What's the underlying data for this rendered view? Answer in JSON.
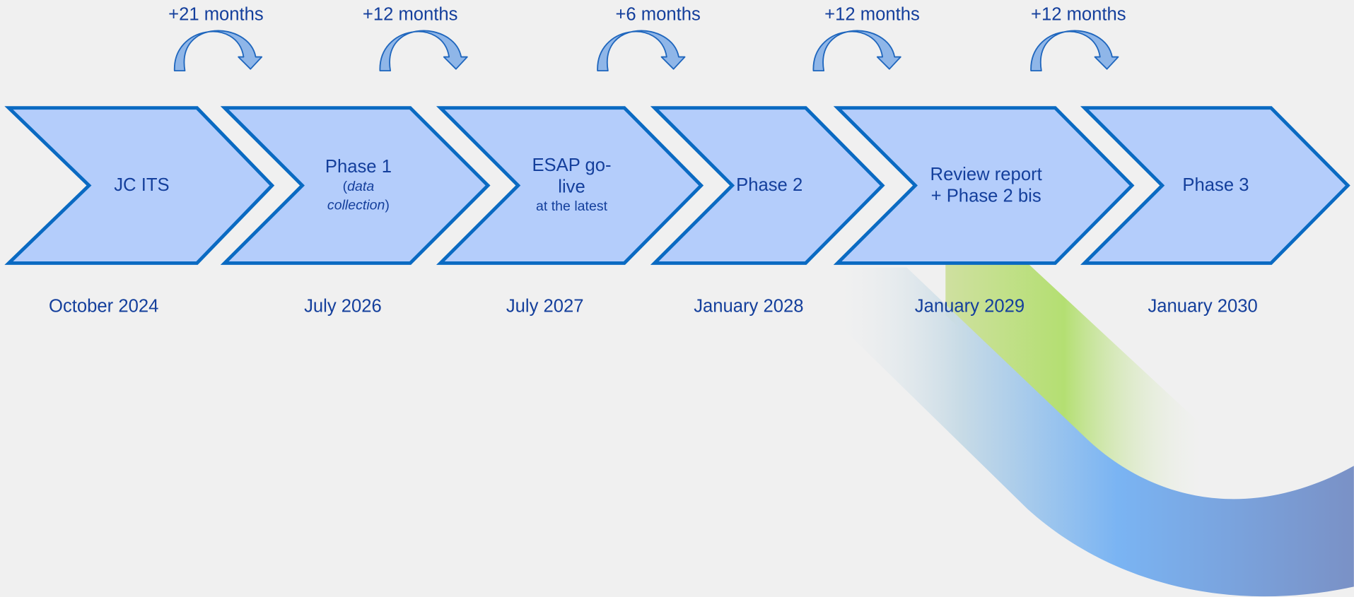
{
  "steps": [
    {
      "title_lines": [
        "JC ITS"
      ],
      "date": "October 2024"
    },
    {
      "title_lines": [
        "Phase 1"
      ],
      "note": {
        "open": "(",
        "italic": "data collection",
        "close": ")"
      },
      "date": "July 2026"
    },
    {
      "title_lines": [
        "ESAP go-",
        "live"
      ],
      "note": {
        "text": "at the latest"
      },
      "date": "July 2027"
    },
    {
      "title_lines": [
        "Phase 2"
      ],
      "date": "January 2028"
    },
    {
      "title_lines": [
        "Review report",
        "+ Phase 2 bis"
      ],
      "date": "January 2029"
    },
    {
      "title_lines": [
        "Phase 3"
      ],
      "date": "January 2030"
    }
  ],
  "intervals": [
    "+21 months",
    "+12 months",
    "+6 months",
    "+12 months",
    "+12 months"
  ]
}
